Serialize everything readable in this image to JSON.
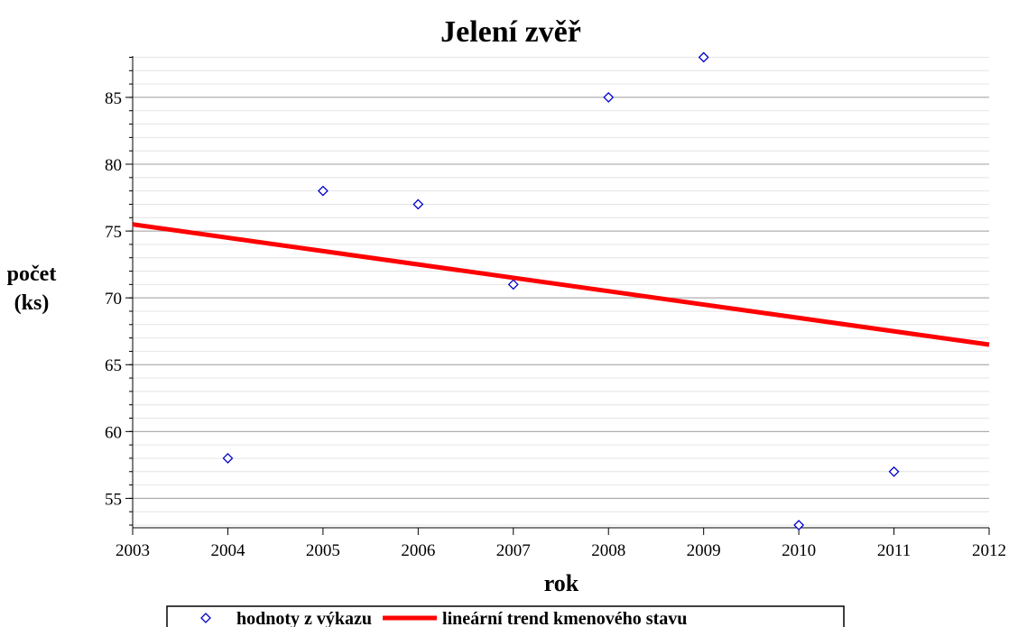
{
  "chart_data": {
    "type": "scatter",
    "title": "Jelení zvěř",
    "xlabel": "rok",
    "ylabel": "počet (ks)",
    "series": [
      {
        "name": "hodnoty z výkazu",
        "type": "scatter",
        "marker": "diamond",
        "color": "#0000cc",
        "x": [
          2004,
          2005,
          2006,
          2007,
          2008,
          2009,
          2010,
          2011
        ],
        "values": [
          58,
          78,
          77,
          71,
          85,
          88,
          53,
          57
        ]
      },
      {
        "name": "lineární trend kmenového stavu",
        "type": "line",
        "color": "#ff0000",
        "x": [
          2003,
          2012
        ],
        "values": [
          75.5,
          66.5
        ]
      }
    ],
    "xlim": [
      2003,
      2012
    ],
    "xticks": [
      2003,
      2004,
      2005,
      2006,
      2007,
      2008,
      2009,
      2010,
      2011,
      2012
    ],
    "ylim": [
      52.8,
      88.1
    ],
    "yticks": [
      55,
      60,
      65,
      70,
      75,
      80,
      85
    ],
    "grid": true,
    "minor_grid_step": 1,
    "legend": "bottom"
  }
}
